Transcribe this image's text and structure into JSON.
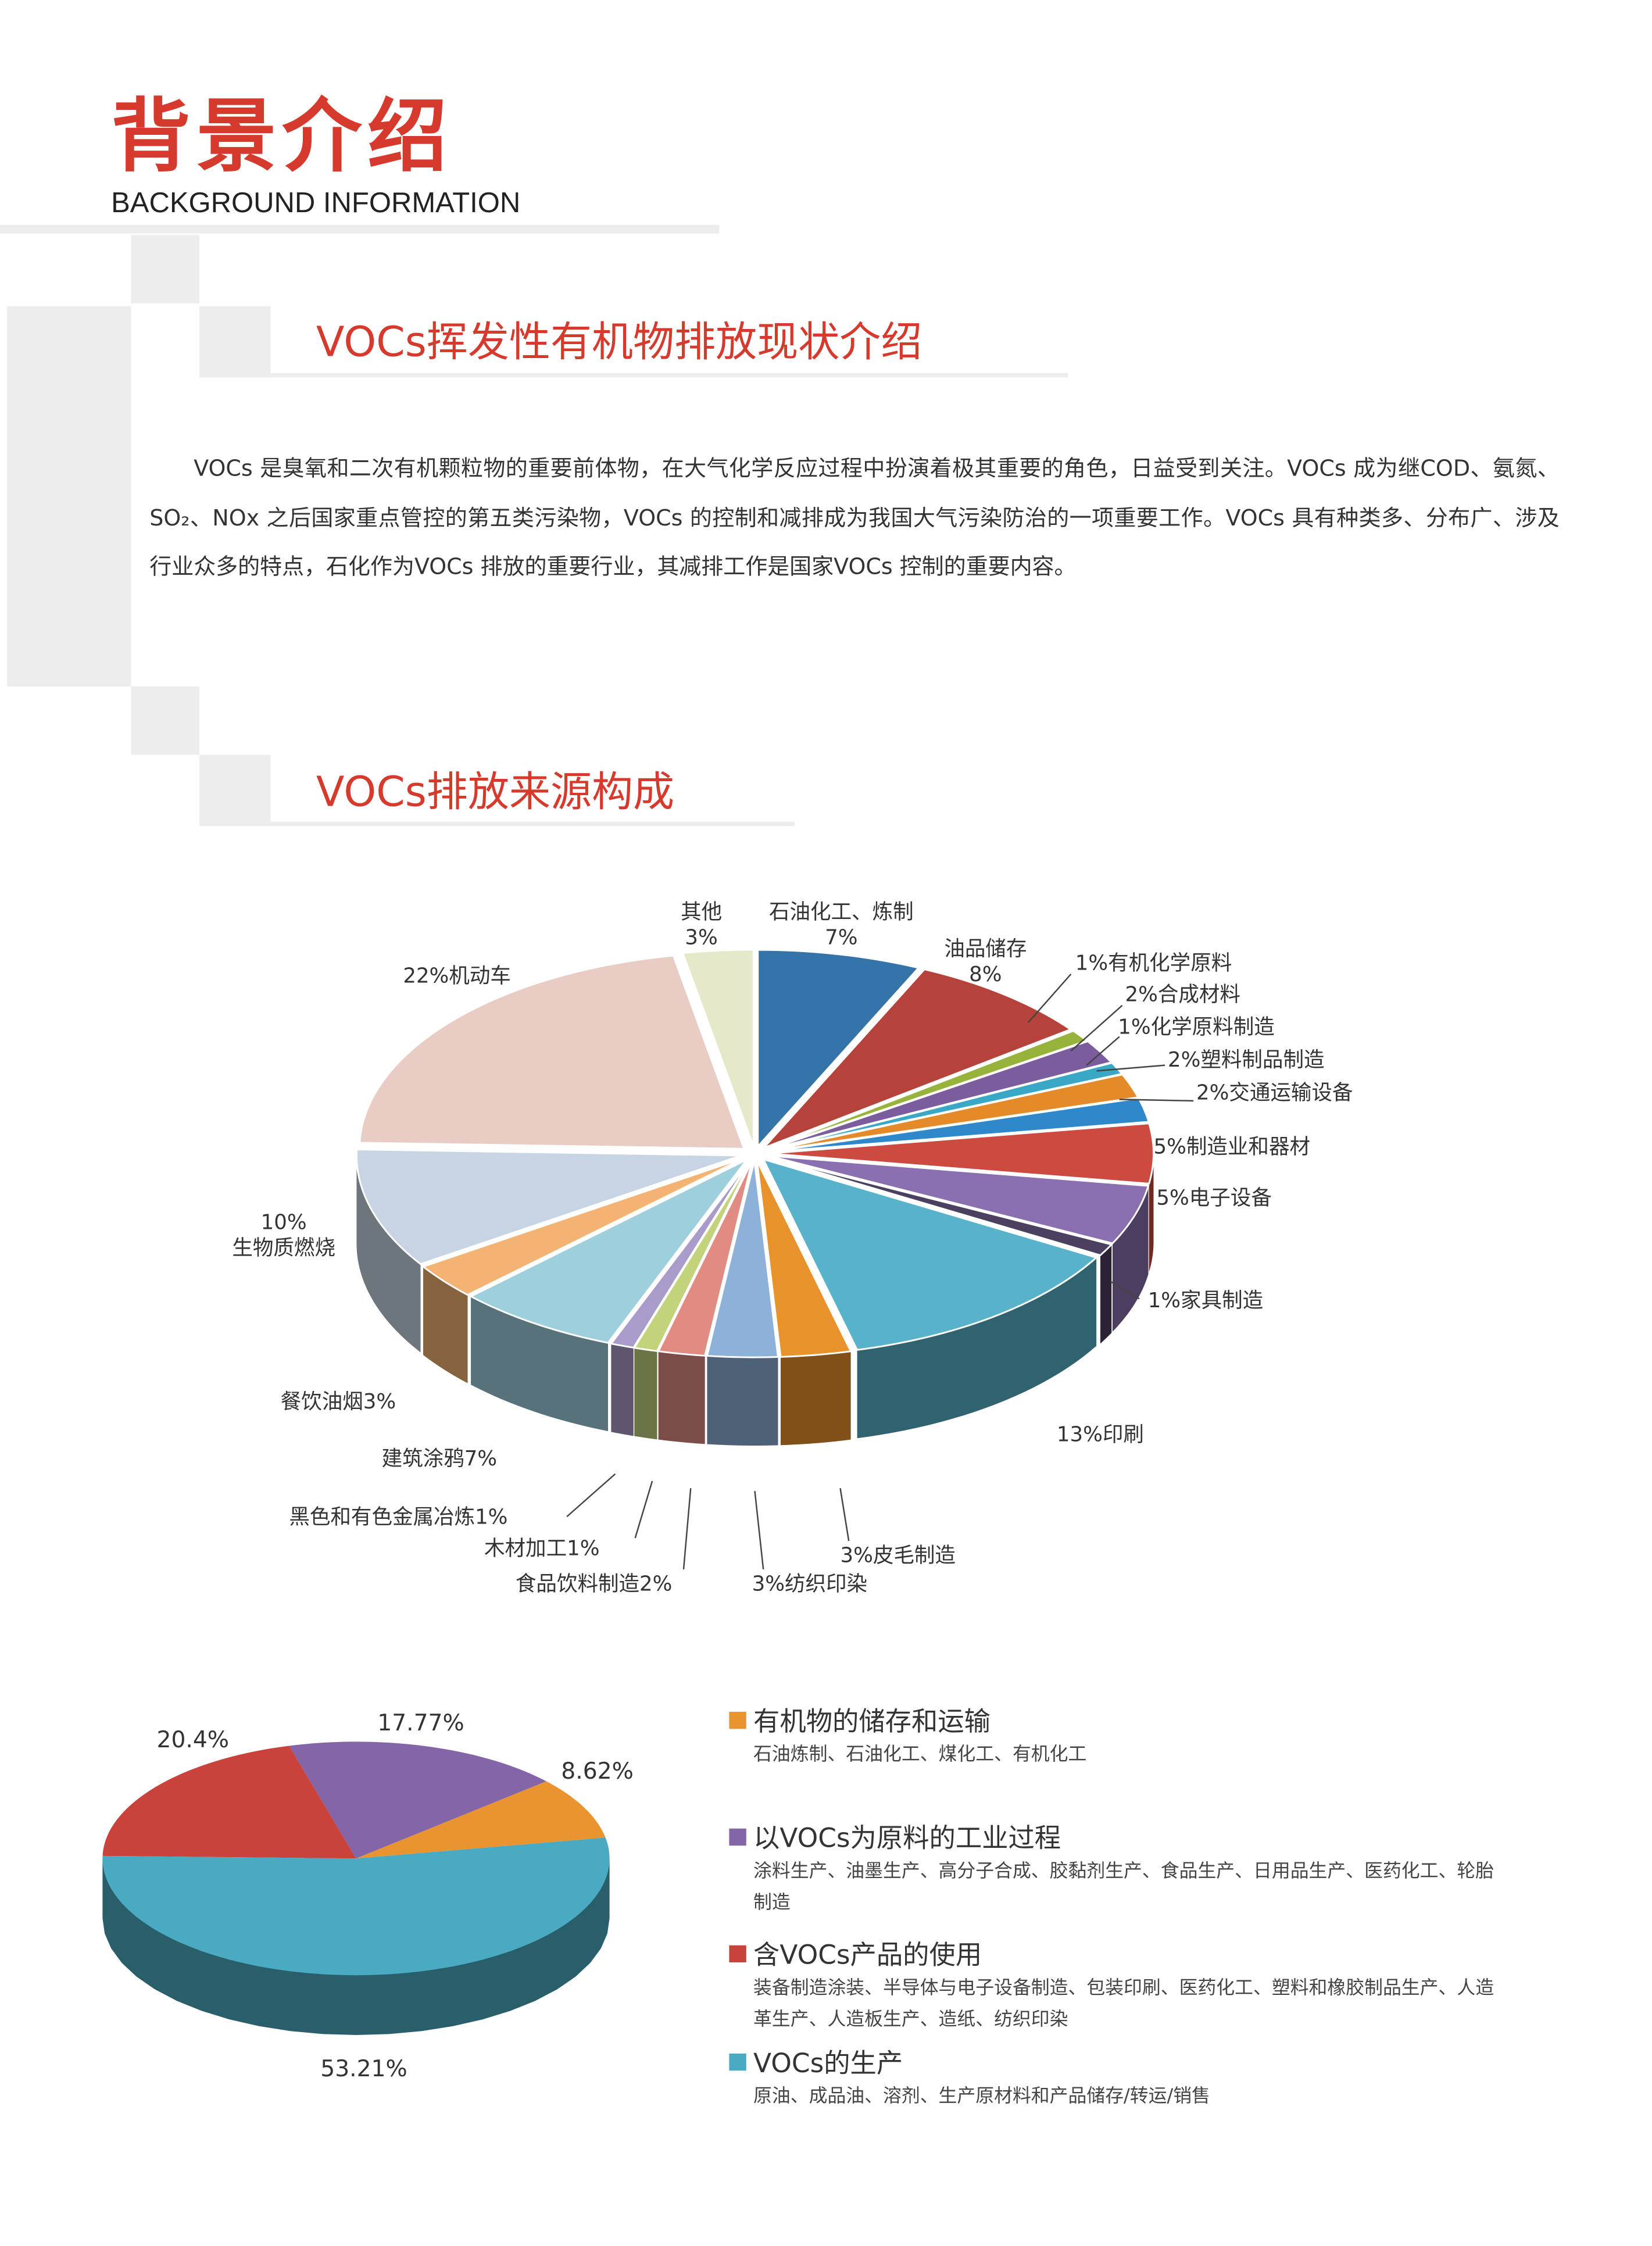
{
  "header": {
    "title_cn": "背景介绍",
    "title_en": "BACKGROUND INFORMATION"
  },
  "section1": {
    "heading": "VOCs挥发性有机物排放现状介绍",
    "paragraph": "VOCs 是臭氧和二次有机颗粒物的重要前体物，在大气化学反应过程中扮演着极其重要的角色，日益受到关注。VOCs 成为继COD、氨氮、SO₂、NOx 之后国家重点管控的第五类污染物，VOCs 的控制和减排成为我国大气污染防治的一项重要工作。VOCs 具有种类多、分布广、涉及行业众多的特点，石化作为VOCs 排放的重要行业，其减排工作是国家VOCs 控制的重要内容。"
  },
  "section2": {
    "heading": "VOCs排放来源构成"
  },
  "chart_data": [
    {
      "type": "pie",
      "style": "3d-exploded",
      "unit": "%",
      "slices": [
        {
          "name": "石油化工、炼制",
          "value": 7,
          "label": "石油化工、炼制",
          "label2": "7%",
          "color": "#3574a8"
        },
        {
          "name": "油品储存",
          "value": 8,
          "label": "油品储存",
          "label2": "8%",
          "color": "#b6433b"
        },
        {
          "name": "有机化学原料",
          "value": 1,
          "label": "1%有机化学原料",
          "color": "#98b33c"
        },
        {
          "name": "合成材料",
          "value": 2,
          "label": "2%合成材料",
          "color": "#7b5c9c"
        },
        {
          "name": "化学原料制造",
          "value": 1,
          "label": "1%化学原料制造",
          "color": "#38a8c6"
        },
        {
          "name": "塑料制品制造",
          "value": 2,
          "label": "2%塑料制品制造",
          "color": "#e48a28"
        },
        {
          "name": "交通运输设备",
          "value": 2,
          "label": "2%交通运输设备",
          "color": "#2f88c9"
        },
        {
          "name": "制造业和器材",
          "value": 5,
          "label": "5%制造业和器材",
          "color": "#cc4a40"
        },
        {
          "name": "电子设备",
          "value": 5,
          "label": "5%电子设备",
          "color": "#8a70b0"
        },
        {
          "name": "家具制造",
          "value": 1,
          "label": "1%家具制造",
          "color": "#4b4060"
        },
        {
          "name": "印刷",
          "value": 13,
          "label": "13%印刷",
          "color": "#58b3ca"
        },
        {
          "name": "皮毛制造",
          "value": 3,
          "label": "3%皮毛制造",
          "color": "#e8922c"
        },
        {
          "name": "纺织印染",
          "value": 3,
          "label": "3%纺织印染",
          "color": "#8db1d9"
        },
        {
          "name": "食品饮料制造",
          "value": 2,
          "label": "食品饮料制造2%",
          "color": "#e18b82"
        },
        {
          "name": "木材加工",
          "value": 1,
          "label": "木材加工1%",
          "color": "#c3d37c"
        },
        {
          "name": "黑色和有色金属冶炼",
          "value": 1,
          "label": "黑色和有色金属冶炼1%",
          "color": "#aa9cca"
        },
        {
          "name": "建筑涂鸦",
          "value": 7,
          "label": "建筑涂鸦7%",
          "color": "#9ecfdd"
        },
        {
          "name": "餐饮油烟",
          "value": 3,
          "label": "餐饮油烟3%",
          "color": "#f3b473"
        },
        {
          "name": "生物质燃烧",
          "value": 10,
          "label": "10%",
          "label2": "生物质燃烧",
          "color": "#c6d4e4"
        },
        {
          "name": "机动车",
          "value": 22,
          "label": "22%机动车",
          "color": "#e9cdc5"
        },
        {
          "name": "其他",
          "value": 3,
          "label": "其他",
          "label2": "3%",
          "color": "#e5e9c9"
        }
      ]
    },
    {
      "type": "pie",
      "style": "3d",
      "unit": "%",
      "slices": [
        {
          "name": "有机物的储存和运输",
          "value": 8.62,
          "label": "8.62%",
          "color": "#ea9431"
        },
        {
          "name": "以VOCs为原料的工业过程",
          "value": 17.77,
          "label": "17.77%",
          "color": "#8465a8"
        },
        {
          "name": "含VOCs产品的使用",
          "value": 20.4,
          "label": "20.4%",
          "color": "#c9423b"
        },
        {
          "name": "VOCs的生产",
          "value": 53.21,
          "label": "53.21%",
          "color": "#4aaac2"
        }
      ],
      "legend": [
        {
          "title": "有机物的储存和运输",
          "desc": "石油炼制、石油化工、煤化工、有机化工",
          "color": "#ea9431"
        },
        {
          "title": "以VOCs为原料的工业过程",
          "desc": "涂料生产、油墨生产、高分子合成、胶黏剂生产、食品生产、日用品生产、医药化工、轮胎制造",
          "color": "#8465a8"
        },
        {
          "title": "含VOCs产品的使用",
          "desc": "装备制造涂装、半导体与电子设备制造、包装印刷、医药化工、塑料和橡胶制品生产、人造革生产、人造板生产、造纸、纺织印染",
          "color": "#c9423b"
        },
        {
          "title": "VOCs的生产",
          "desc": "原油、成品油、溶剂、生产原材料和产品储存/转运/销售",
          "color": "#4aaac2"
        }
      ]
    }
  ]
}
